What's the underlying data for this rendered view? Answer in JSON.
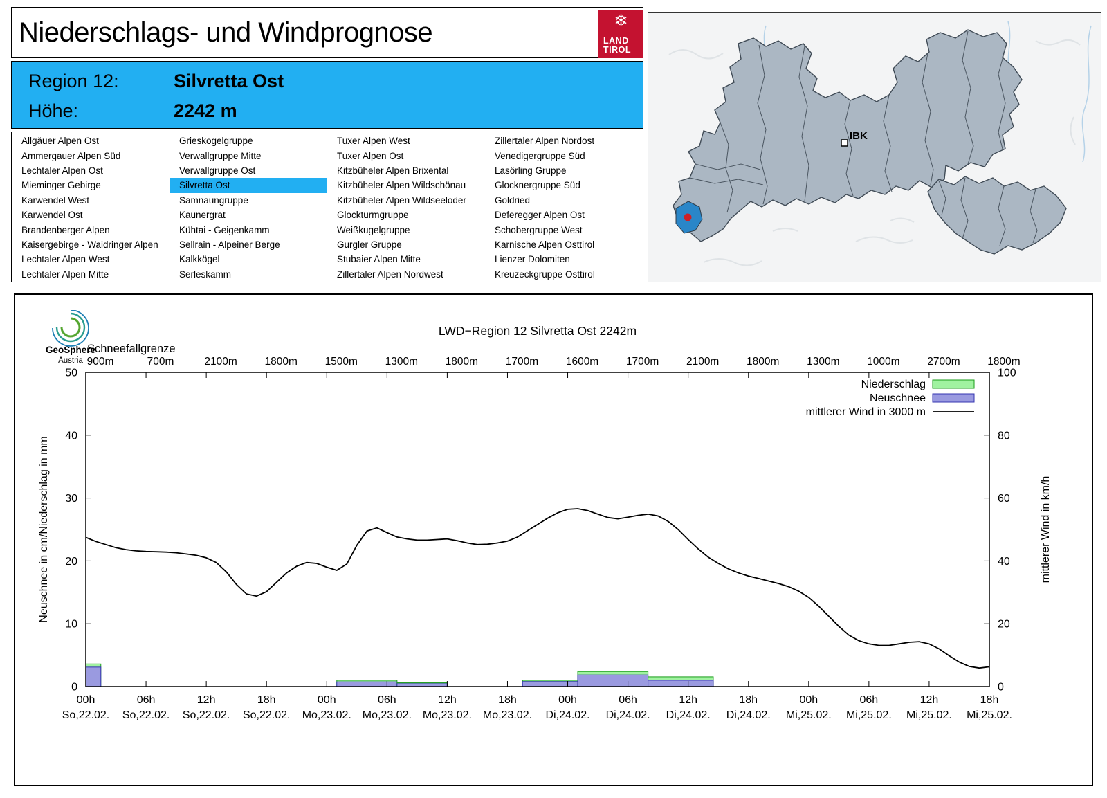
{
  "header": {
    "title": "Niederschlags- und Windprognose"
  },
  "logo": {
    "line1": "LAND",
    "line2": "TIROL",
    "snowflake": "❄",
    "color": "#c41230"
  },
  "region_box": {
    "region_label": "Region 12:",
    "region_value": "Silvretta Ost",
    "altitude_label": "Höhe:",
    "altitude_value": "2242 m",
    "accent_color": "#22aff2"
  },
  "region_list": {
    "selected": "Silvretta Ost",
    "columns": [
      [
        "Allgäuer Alpen Ost",
        "Ammergauer Alpen Süd",
        "Lechtaler Alpen Ost",
        "Mieminger Gebirge",
        "Karwendel West",
        "Karwendel Ost",
        "Brandenberger Alpen",
        "Kaisergebirge - Waidringer Alpen",
        "Lechtaler Alpen West",
        "Lechtaler Alpen Mitte"
      ],
      [
        "Grieskogelgruppe",
        "Verwallgruppe Mitte",
        "Verwallgruppe Ost",
        "Silvretta Ost",
        "Samnaungruppe",
        "Kaunergrat",
        "Kühtai - Geigenkamm",
        "Sellrain - Alpeiner Berge",
        "Kalkkögel",
        "Serleskamm"
      ],
      [
        "Tuxer Alpen West",
        "Tuxer Alpen Ost",
        "Kitzbüheler Alpen Brixental",
        "Kitzbüheler Alpen Wildschönau",
        "Kitzbüheler Alpen Wildseeloder",
        "Glockturmgruppe",
        "Weißkugelgruppe",
        "Gurgler Gruppe",
        "Stubaier Alpen Mitte",
        "Zillertaler Alpen Nordwest"
      ],
      [
        "Zillertaler Alpen Nordost",
        "Venedigergruppe Süd",
        "Lasörling Gruppe",
        "Glocknergruppe Süd",
        "Goldried",
        "Deferegger Alpen Ost",
        "Schobergruppe West",
        "Karnische Alpen Osttirol",
        "Lienzer Dolomiten",
        "Kreuzeckgruppe Osttirol"
      ]
    ]
  },
  "map": {
    "ibk_label": "IBK",
    "region_fill": "#abb7c3",
    "highlight_color": "#2a86c8",
    "marker_color": "#cc2027"
  },
  "geosphere": {
    "name": "GeoSphere",
    "country": "Austria"
  },
  "chart_data": {
    "type": "bar+line",
    "title": "LWD−Region 12 Silvretta Ost 2242m",
    "snowline_label": "Schneefallgrenze",
    "snowline_values": [
      "900m",
      "700m",
      "2100m",
      "1800m",
      "1500m",
      "1300m",
      "1800m",
      "1700m",
      "1600m",
      "1700m",
      "2100m",
      "1800m",
      "1300m",
      "1000m",
      "2700m",
      "1800m"
    ],
    "ylabel_left": "Neuschnee in cm/Niederschlag in mm",
    "ylabel_right": "mittlerer Wind in km/h",
    "ylim_left": [
      0,
      50
    ],
    "ylim_right": [
      0,
      100
    ],
    "yticks_left": [
      0,
      10,
      20,
      30,
      40,
      50
    ],
    "yticks_right": [
      0,
      20,
      40,
      60,
      80,
      100
    ],
    "x_total_hours": 90,
    "xticks": [
      {
        "hour": "00h",
        "date": "So,22.02."
      },
      {
        "hour": "06h",
        "date": "So,22.02."
      },
      {
        "hour": "12h",
        "date": "So,22.02."
      },
      {
        "hour": "18h",
        "date": "So,22.02."
      },
      {
        "hour": "00h",
        "date": "Mo,23.02."
      },
      {
        "hour": "06h",
        "date": "Mo,23.02."
      },
      {
        "hour": "12h",
        "date": "Mo,23.02."
      },
      {
        "hour": "18h",
        "date": "Mo,23.02."
      },
      {
        "hour": "00h",
        "date": "Di,24.02."
      },
      {
        "hour": "06h",
        "date": "Di,24.02."
      },
      {
        "hour": "12h",
        "date": "Di,24.02."
      },
      {
        "hour": "18h",
        "date": "Di,24.02."
      },
      {
        "hour": "00h",
        "date": "Mi,25.02."
      },
      {
        "hour": "06h",
        "date": "Mi,25.02."
      },
      {
        "hour": "12h",
        "date": "Mi,25.02."
      },
      {
        "hour": "18h",
        "date": "Mi,25.02."
      }
    ],
    "legend": [
      {
        "label": "Niederschlag",
        "type": "box",
        "fill": "#a0f2a0",
        "stroke": "#1a9c1a"
      },
      {
        "label": "Neuschnee",
        "type": "box",
        "fill": "#9a9ae0",
        "stroke": "#3434b0"
      },
      {
        "label": "mittlerer Wind in 3000 m",
        "type": "line",
        "stroke": "#000000"
      }
    ],
    "colors": {
      "niederschlag_fill": "#a0f2a0",
      "niederschlag_stroke": "#1a9c1a",
      "neuschnee_fill": "#9a9ae0",
      "neuschnee_stroke": "#3434b0",
      "wind_line": "#000000"
    },
    "bars": [
      {
        "from_h": 0,
        "to_h": 1.5,
        "niederschlag_mm": 3.6,
        "neuschnee_cm": 3.1
      },
      {
        "from_h": 25,
        "to_h": 31,
        "niederschlag_mm": 1.0,
        "neuschnee_cm": 0.75
      },
      {
        "from_h": 31,
        "to_h": 36,
        "niederschlag_mm": 0.6,
        "neuschnee_cm": 0.45
      },
      {
        "from_h": 43.5,
        "to_h": 49,
        "niederschlag_mm": 1.0,
        "neuschnee_cm": 0.8
      },
      {
        "from_h": 49,
        "to_h": 56,
        "niederschlag_mm": 2.4,
        "neuschnee_cm": 1.85
      },
      {
        "from_h": 56,
        "to_h": 62.5,
        "niederschlag_mm": 1.55,
        "neuschnee_cm": 1.0
      }
    ],
    "wind_points": [
      [
        0,
        47.5
      ],
      [
        1,
        46.2
      ],
      [
        2,
        45.2
      ],
      [
        3,
        44.2
      ],
      [
        4,
        43.6
      ],
      [
        5,
        43.2
      ],
      [
        6,
        43
      ],
      [
        7,
        42.9
      ],
      [
        8,
        42.8
      ],
      [
        9,
        42.6
      ],
      [
        10,
        42.2
      ],
      [
        11,
        41.8
      ],
      [
        12,
        41
      ],
      [
        13,
        39.5
      ],
      [
        14,
        36.5
      ],
      [
        15,
        32.5
      ],
      [
        16,
        29.5
      ],
      [
        17,
        28.8
      ],
      [
        18,
        30.2
      ],
      [
        19,
        33.2
      ],
      [
        20,
        36.2
      ],
      [
        21,
        38.3
      ],
      [
        22,
        39.5
      ],
      [
        23,
        39.2
      ],
      [
        24,
        38
      ],
      [
        25,
        37
      ],
      [
        26,
        39
      ],
      [
        27,
        45
      ],
      [
        28,
        49.5
      ],
      [
        29,
        50.5
      ],
      [
        30,
        49
      ],
      [
        31,
        47.6
      ],
      [
        32,
        47
      ],
      [
        33,
        46.6
      ],
      [
        34,
        46.6
      ],
      [
        35,
        46.8
      ],
      [
        36,
        47
      ],
      [
        37,
        46.4
      ],
      [
        38,
        45.7
      ],
      [
        39,
        45.2
      ],
      [
        40,
        45.3
      ],
      [
        41,
        45.7
      ],
      [
        42,
        46.3
      ],
      [
        43,
        47.6
      ],
      [
        44,
        49.6
      ],
      [
        45,
        51.6
      ],
      [
        46,
        53.6
      ],
      [
        47,
        55.3
      ],
      [
        48,
        56.4
      ],
      [
        49,
        56.6
      ],
      [
        50,
        56
      ],
      [
        51,
        54.9
      ],
      [
        52,
        53.8
      ],
      [
        53,
        53.4
      ],
      [
        54,
        53.9
      ],
      [
        55,
        54.5
      ],
      [
        56,
        54.9
      ],
      [
        57,
        54.3
      ],
      [
        58,
        52.6
      ],
      [
        59,
        50
      ],
      [
        60,
        46.8
      ],
      [
        61,
        43.8
      ],
      [
        62,
        41.2
      ],
      [
        63,
        39.2
      ],
      [
        64,
        37.5
      ],
      [
        65,
        36.2
      ],
      [
        66,
        35.2
      ],
      [
        67,
        34.4
      ],
      [
        68,
        33.6
      ],
      [
        69,
        32.8
      ],
      [
        70,
        31.8
      ],
      [
        71,
        30.4
      ],
      [
        72,
        28.4
      ],
      [
        73,
        25.6
      ],
      [
        74,
        22.4
      ],
      [
        75,
        19.2
      ],
      [
        76,
        16.4
      ],
      [
        77,
        14.6
      ],
      [
        78,
        13.6
      ],
      [
        79,
        13.1
      ],
      [
        80,
        13.1
      ],
      [
        81,
        13.6
      ],
      [
        82,
        14.1
      ],
      [
        83,
        14.3
      ],
      [
        84,
        13.6
      ],
      [
        85,
        12
      ],
      [
        86,
        9.8
      ],
      [
        87,
        7.8
      ],
      [
        88,
        6.4
      ],
      [
        89,
        5.9
      ],
      [
        90,
        6.3
      ]
    ]
  }
}
